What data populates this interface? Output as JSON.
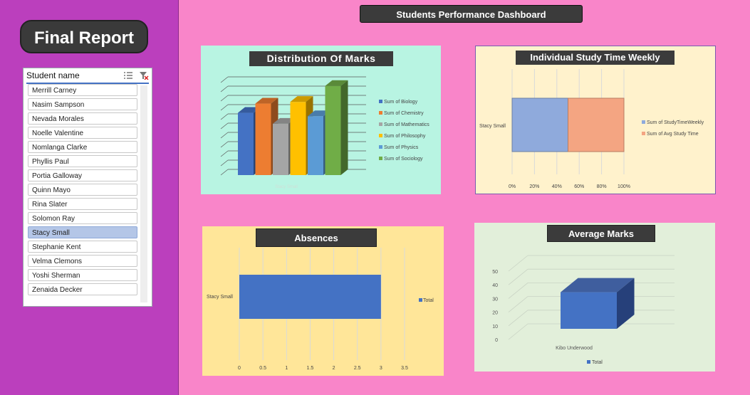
{
  "report_title": "Final Report",
  "dashboard_title": "Students Performance Dashboard",
  "slicer": {
    "title": "Student name",
    "items": [
      "Merrill Carney",
      "Nasim Sampson",
      "Nevada Morales",
      "Noelle Valentine",
      "Nomlanga Clarke",
      "Phyllis Paul",
      "Portia Galloway",
      "Quinn Mayo",
      "Rina Slater",
      "Solomon Ray",
      "Stacy Small",
      "Stephanie Kent",
      "Velma Clemons",
      "Yoshi Sherman",
      "Zenaida Decker"
    ],
    "selected": "Stacy Small"
  },
  "chart_data": [
    {
      "type": "bar",
      "title": "Distribution Of Marks",
      "categories": [
        "Stacy Small"
      ],
      "series": [
        {
          "name": "Sum of Biology",
          "values": [
            74
          ],
          "color": "#4472c4"
        },
        {
          "name": "Sum of Chemistry",
          "values": [
            85
          ],
          "color": "#ed7d31"
        },
        {
          "name": "Sum of Mathematics",
          "values": [
            61
          ],
          "color": "#a5a5a5"
        },
        {
          "name": "Sum of Philosophy",
          "values": [
            87
          ],
          "color": "#ffc000"
        },
        {
          "name": "Sum of Physics",
          "values": [
            70
          ],
          "color": "#5b9bd5"
        },
        {
          "name": "Sum of Sociology",
          "values": [
            106
          ],
          "color": "#70ad47"
        }
      ],
      "ylim": [
        0,
        110
      ],
      "grid": true,
      "legend": "right"
    },
    {
      "type": "bar",
      "title": "Individual Study Time Weekly",
      "orientation": "horizontal",
      "stacked": "percent",
      "categories": [
        "Stacy Small"
      ],
      "series": [
        {
          "name": "Sum of StudyTimeWeekly",
          "values": [
            50
          ],
          "color": "#8faadc"
        },
        {
          "name": "Sum of Avg Study Time",
          "values": [
            50
          ],
          "color": "#f4a582"
        }
      ],
      "xticks": [
        "0%",
        "20%",
        "40%",
        "60%",
        "80%",
        "100%"
      ],
      "xlim": [
        0,
        100
      ],
      "legend": "right"
    },
    {
      "type": "bar",
      "title": "Absences",
      "orientation": "horizontal",
      "categories": [
        "Stacy Small"
      ],
      "series": [
        {
          "name": "Total",
          "values": [
            3
          ],
          "color": "#4472c4"
        }
      ],
      "xticks": [
        "0",
        "0.5",
        "1",
        "1.5",
        "2",
        "2.5",
        "3",
        "3.5"
      ],
      "xlim": [
        0,
        3.5
      ],
      "legend": "right"
    },
    {
      "type": "bar",
      "title": "Average Marks",
      "categories": [
        "Kibo Underwood"
      ],
      "series": [
        {
          "name": "Total",
          "values": [
            45
          ],
          "color": "#4472c4"
        }
      ],
      "yticks": [
        "0",
        "10",
        "20",
        "30",
        "40",
        "50"
      ],
      "ylim": [
        0,
        50
      ],
      "legend": "bottom"
    }
  ]
}
